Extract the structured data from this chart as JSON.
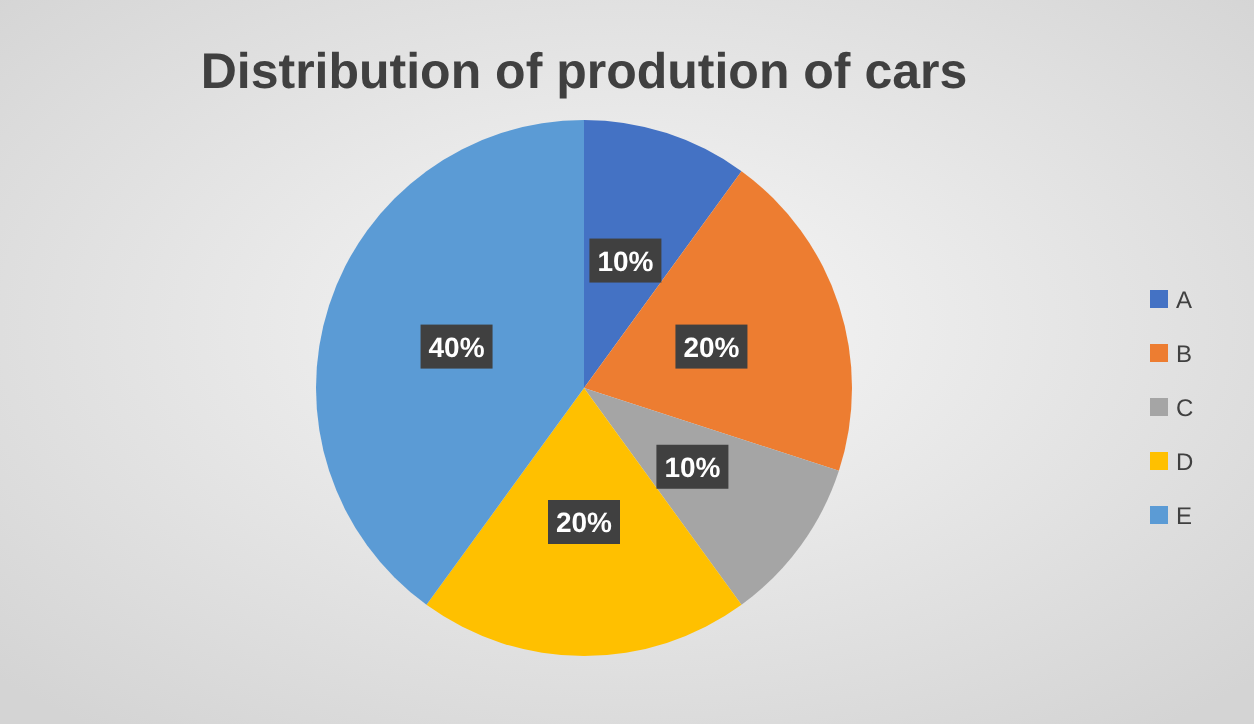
{
  "chart_data": {
    "type": "pie",
    "title": "Distribution of prodution of cars",
    "categories": [
      "A",
      "B",
      "C",
      "D",
      "E"
    ],
    "values": [
      10,
      20,
      10,
      20,
      40
    ],
    "value_labels": [
      "10%",
      "20%",
      "10%",
      "20%",
      "40%"
    ],
    "colors": [
      "#4472c4",
      "#ed7d31",
      "#a5a5a5",
      "#ffc000",
      "#5b9bd5"
    ],
    "legend": "right"
  }
}
